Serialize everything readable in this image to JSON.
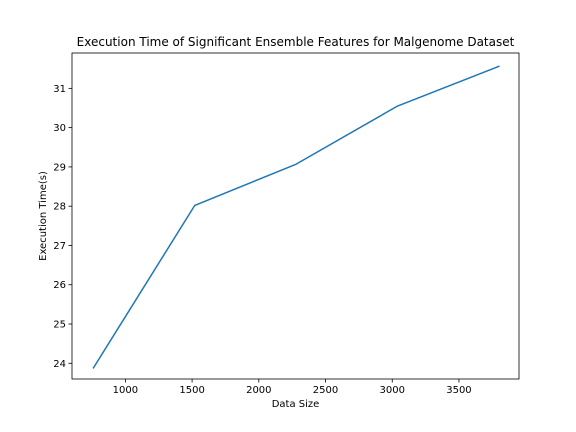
{
  "chart_data": {
    "type": "line",
    "title": "Execution Time of Significant Ensemble Features for Malgenome Dataset",
    "xlabel": "Data Size",
    "ylabel": "Execution Time(s)",
    "xlim": [
      600,
      3950
    ],
    "ylim": [
      23.6,
      31.9
    ],
    "xticks": [
      1000,
      1500,
      2000,
      2500,
      3000,
      3500
    ],
    "yticks": [
      24,
      25,
      26,
      27,
      28,
      29,
      30,
      31
    ],
    "grid": false,
    "series": [
      {
        "x": [
          760,
          1520,
          2280,
          3040,
          3800
        ],
        "y": [
          23.88,
          28.02,
          29.07,
          30.55,
          31.56
        ],
        "color": "#1f77b4"
      }
    ]
  }
}
